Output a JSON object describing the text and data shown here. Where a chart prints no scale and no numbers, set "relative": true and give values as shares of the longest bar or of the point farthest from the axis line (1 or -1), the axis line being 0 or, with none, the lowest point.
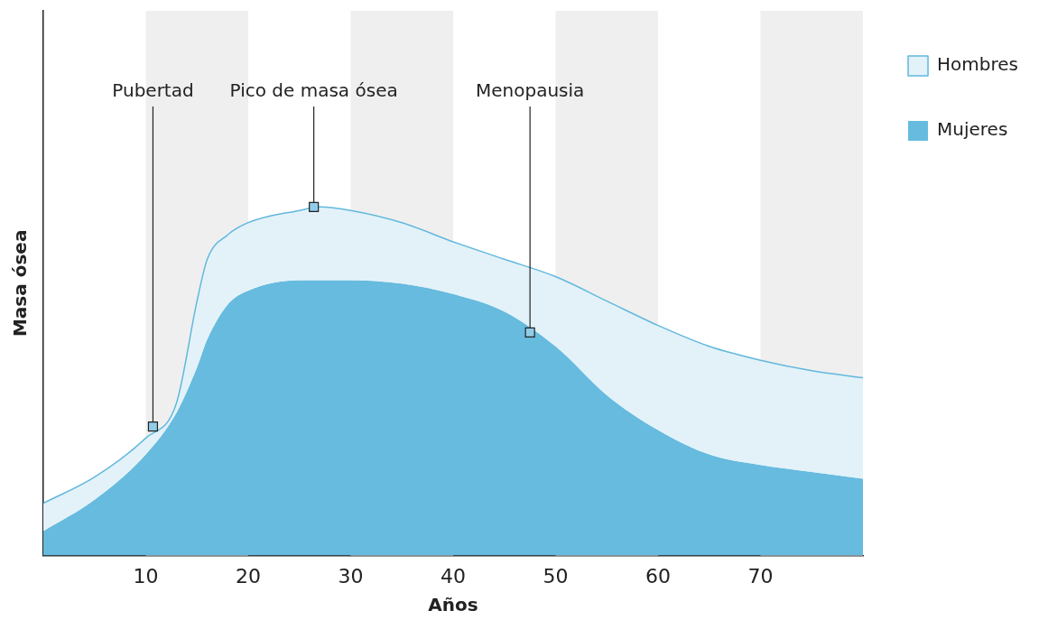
{
  "chart_data": {
    "type": "area",
    "xlabel": "Años",
    "ylabel": "Masa ósea",
    "relative": true,
    "xlim": [
      0,
      80
    ],
    "xticks": [
      10,
      20,
      30,
      40,
      50,
      60,
      70
    ],
    "grid": false,
    "legend": "right",
    "marker": "none",
    "x": [
      0,
      5,
      10,
      13,
      15,
      16,
      18,
      20,
      25,
      27,
      30,
      35,
      40,
      45,
      50,
      55,
      60,
      65,
      70,
      75,
      80
    ],
    "series": [
      {
        "name": "Hombres",
        "color": "#62b8dd",
        "values": [
          0.15,
          0.225,
          0.337,
          0.438,
          0.73,
          0.85,
          0.92,
          0.955,
          0.99,
          1.0,
          0.99,
          0.955,
          0.9,
          0.85,
          0.8,
          0.73,
          0.66,
          0.6,
          0.56,
          0.53,
          0.51
        ]
      },
      {
        "name": "Mujeres",
        "color": "#66bbdf",
        "values": [
          0.07,
          0.16,
          0.29,
          0.41,
          0.54,
          0.62,
          0.72,
          0.76,
          0.79,
          0.79,
          0.79,
          0.78,
          0.75,
          0.7,
          0.6,
          0.46,
          0.36,
          0.29,
          0.26,
          0.24,
          0.22
        ]
      }
    ],
    "bands": [
      {
        "axis": "x",
        "from": 10,
        "to": 20,
        "color": "#efefef"
      },
      {
        "axis": "x",
        "from": 30,
        "to": 40,
        "color": "#efefef"
      },
      {
        "axis": "x",
        "from": 50,
        "to": 60,
        "color": "#efefef"
      },
      {
        "axis": "x",
        "from": 70,
        "to": 80,
        "color": "#efefef"
      }
    ],
    "annotations": [
      {
        "text": "Pubertad",
        "x": 10.7,
        "y": 0.37
      },
      {
        "text": "Pico de masa ósea",
        "x": 26.4,
        "y": 1.0
      },
      {
        "text": "Menopausia",
        "x": 47.5,
        "y": 0.64
      }
    ]
  }
}
